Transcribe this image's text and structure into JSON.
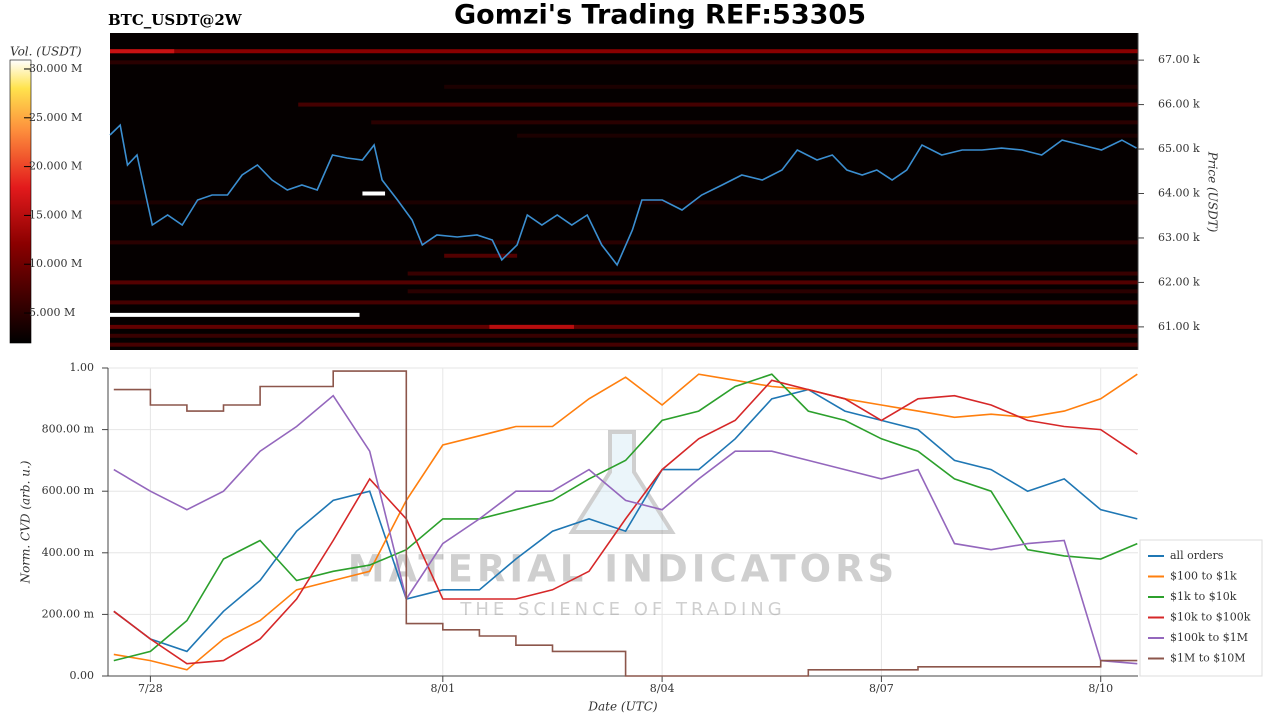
{
  "title": "Gomzi's Trading REF:53305",
  "chart_data": [
    {
      "type": "heatmap",
      "title": "BTC_USDT@2W",
      "colorbar_label": "Vol. (USDT)",
      "ylabel": "Price (USDT)",
      "xlim": [
        27.42,
        41.51
      ],
      "ylim": [
        60480,
        67610
      ],
      "yticks": [
        {
          "value": 61000,
          "label": "61.00 k"
        },
        {
          "value": 62000,
          "label": "62.00 k"
        },
        {
          "value": 63000,
          "label": "63.00 k"
        },
        {
          "value": 64000,
          "label": "64.00 k"
        },
        {
          "value": 65000,
          "label": "65.00 k"
        },
        {
          "value": 66000,
          "label": "66.00 k"
        },
        {
          "value": 67000,
          "label": "67.00 k"
        }
      ],
      "zlim": [
        1930000,
        30920000
      ],
      "zticks": [
        {
          "value": 5000000,
          "label": "5.000 M"
        },
        {
          "value": 10000000,
          "label": "10.000 M"
        },
        {
          "value": 15000000,
          "label": "15.000 M"
        },
        {
          "value": 20000000,
          "label": "20.000 M"
        },
        {
          "value": 25000000,
          "label": "25.000 M"
        },
        {
          "value": 30000000,
          "label": "30.000 M"
        }
      ],
      "bands": {
        "prices": [
          67200,
          67200,
          66950,
          66400,
          66000,
          65600,
          65300,
          63800,
          64000,
          62900,
          62600,
          62200,
          62000,
          61800,
          61550,
          61270,
          61000,
          61000,
          60800,
          60600
        ],
        "volumes": [
          12000000,
          16000000,
          5000000,
          4000000,
          7000000,
          5000000,
          4000000,
          4000000,
          32000000,
          5000000,
          8000000,
          6000000,
          8000000,
          5000000,
          7000000,
          32000000,
          9000000,
          15000000,
          6000000,
          7000000
        ],
        "x_start": [
          27.42,
          27.42,
          27.42,
          32,
          30,
          31,
          33,
          27.42,
          30.88,
          27.42,
          32,
          31.5,
          27.42,
          31.5,
          27.42,
          27.42,
          27.42,
          32.62,
          27.42,
          27.42
        ],
        "x_end": [
          41.51,
          28.3,
          41.51,
          41.51,
          41.51,
          41.51,
          41.51,
          41.51,
          31.19,
          41.51,
          33,
          41.51,
          41.51,
          41.51,
          41.51,
          30.84,
          41.51,
          33.78,
          41.51,
          41.51
        ]
      },
      "color": "#3b8ed0",
      "x": [
        27.42,
        27.56,
        27.66,
        27.79,
        28.0,
        28.21,
        28.41,
        28.62,
        28.82,
        29.03,
        29.23,
        29.44,
        29.64,
        29.85,
        30.05,
        30.26,
        30.47,
        30.67,
        30.88,
        31.04,
        31.15,
        31.36,
        31.56,
        31.7,
        31.9,
        32.18,
        32.45,
        32.66,
        32.79,
        33.0,
        33.14,
        33.34,
        33.55,
        33.75,
        33.96,
        34.16,
        34.37,
        34.58,
        34.71,
        34.99,
        35.26,
        35.53,
        35.81,
        36.08,
        36.36,
        36.63,
        36.84,
        37.11,
        37.32,
        37.52,
        37.73,
        37.93,
        38.14,
        38.34,
        38.55,
        38.82,
        39.1,
        39.37,
        39.64,
        39.92,
        40.19,
        40.47,
        40.74,
        41.01,
        41.29,
        41.49
      ],
      "values": [
        65315,
        65539,
        64640,
        64865,
        63292,
        63517,
        63292,
        63854,
        63966,
        63966,
        64416,
        64640,
        64303,
        64079,
        64191,
        64079,
        64865,
        64798,
        64753,
        65090,
        64303,
        63854,
        63404,
        62843,
        63067,
        63022,
        63067,
        62955,
        62506,
        62843,
        63517,
        63292,
        63517,
        63292,
        63517,
        62843,
        62393,
        63180,
        63854,
        63854,
        63629,
        63966,
        64191,
        64416,
        64303,
        64528,
        64978,
        64753,
        64865,
        64528,
        64416,
        64528,
        64303,
        64528,
        65090,
        64865,
        64978,
        64978,
        65022,
        64978,
        64865,
        65202,
        65090,
        64978,
        65202,
        65022
      ]
    },
    {
      "type": "line",
      "xlabel": "Date (UTC)",
      "ylabel": "Norm. CVD (arb. u.)",
      "watermark": "MATERIAL INDICATORS",
      "watermark_sub": "THE SCIENCE OF TRADING",
      "grid": true,
      "legend": "right",
      "xlim": [
        27.42,
        41.51
      ],
      "ylim": [
        0,
        1
      ],
      "xticks": [
        {
          "value": 28,
          "label": "7/28"
        },
        {
          "value": 32,
          "label": "8/01"
        },
        {
          "value": 35,
          "label": "8/04"
        },
        {
          "value": 38,
          "label": "8/07"
        },
        {
          "value": 41,
          "label": "8/10"
        }
      ],
      "yticks": [
        {
          "value": 0,
          "label": "0.00"
        },
        {
          "value": 0.2,
          "label": "200.00 m"
        },
        {
          "value": 0.4,
          "label": "400.00 m"
        },
        {
          "value": 0.6,
          "label": "600.00 m"
        },
        {
          "value": 0.8,
          "label": "800.00 m"
        },
        {
          "value": 1,
          "label": "1.00"
        }
      ],
      "x": [
        27.5,
        28,
        28.5,
        29,
        29.5,
        30,
        30.5,
        31,
        31.5,
        32,
        32.5,
        33,
        33.5,
        34,
        34.5,
        35,
        35.5,
        36,
        36.5,
        37,
        37.5,
        38,
        38.5,
        39,
        39.5,
        40,
        40.5,
        41,
        41.5
      ],
      "series": [
        {
          "name": "all orders",
          "color": "#1f77b4",
          "values": [
            0.21,
            0.12,
            0.08,
            0.21,
            0.31,
            0.47,
            0.57,
            0.6,
            0.25,
            0.28,
            0.28,
            0.38,
            0.47,
            0.51,
            0.47,
            0.67,
            0.67,
            0.77,
            0.9,
            0.93,
            0.86,
            0.83,
            0.8,
            0.7,
            0.67,
            0.6,
            0.64,
            0.54,
            0.51
          ]
        },
        {
          "name": "$100 to $1k",
          "color": "#ff7f0e",
          "values": [
            0.07,
            0.05,
            0.02,
            0.12,
            0.18,
            0.28,
            0.31,
            0.34,
            0.57,
            0.75,
            0.78,
            0.81,
            0.81,
            0.9,
            0.97,
            0.88,
            0.98,
            0.96,
            0.94,
            0.93,
            0.9,
            0.88,
            0.86,
            0.84,
            0.85,
            0.84,
            0.86,
            0.9,
            0.98
          ]
        },
        {
          "name": "$1k to $10k",
          "color": "#2ca02c",
          "values": [
            0.05,
            0.08,
            0.18,
            0.38,
            0.44,
            0.31,
            0.34,
            0.36,
            0.41,
            0.51,
            0.51,
            0.54,
            0.57,
            0.64,
            0.7,
            0.83,
            0.86,
            0.94,
            0.98,
            0.86,
            0.83,
            0.77,
            0.73,
            0.64,
            0.6,
            0.41,
            0.39,
            0.38,
            0.43
          ]
        },
        {
          "name": "$10k to $100k",
          "color": "#d62728",
          "values": [
            0.21,
            0.12,
            0.04,
            0.05,
            0.12,
            0.25,
            0.44,
            0.64,
            0.51,
            0.25,
            0.25,
            0.25,
            0.28,
            0.34,
            0.51,
            0.67,
            0.77,
            0.83,
            0.96,
            0.93,
            0.9,
            0.83,
            0.9,
            0.91,
            0.88,
            0.83,
            0.81,
            0.8,
            0.72
          ]
        },
        {
          "name": "$100k to $1M",
          "color": "#9467bd",
          "values": [
            0.67,
            0.6,
            0.54,
            0.6,
            0.73,
            0.81,
            0.91,
            0.73,
            0.25,
            0.43,
            0.51,
            0.6,
            0.6,
            0.67,
            0.57,
            0.54,
            0.64,
            0.73,
            0.73,
            0.7,
            0.67,
            0.64,
            0.67,
            0.43,
            0.41,
            0.43,
            0.44,
            0.05,
            0.04
          ]
        },
        {
          "name": "$1M to $10M",
          "color": "#8c564b",
          "step": true,
          "values": [
            0.93,
            0.88,
            0.86,
            0.88,
            0.94,
            0.94,
            0.99,
            0.99,
            0.17,
            0.15,
            0.13,
            0.1,
            0.08,
            0.08,
            0,
            0,
            0,
            0,
            0,
            0.02,
            0.02,
            0.02,
            0.03,
            0.03,
            0.03,
            0.03,
            0.03,
            0.05,
            0.05
          ]
        }
      ]
    }
  ]
}
